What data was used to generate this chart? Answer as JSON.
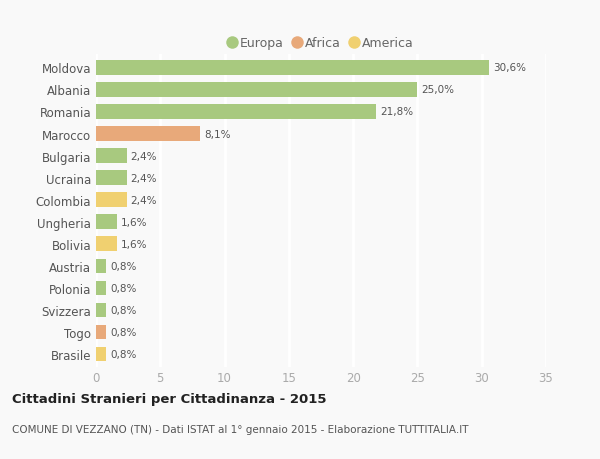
{
  "countries": [
    "Moldova",
    "Albania",
    "Romania",
    "Marocco",
    "Bulgaria",
    "Ucraina",
    "Colombia",
    "Ungheria",
    "Bolivia",
    "Austria",
    "Polonia",
    "Svizzera",
    "Togo",
    "Brasile"
  ],
  "values": [
    30.6,
    25.0,
    21.8,
    8.1,
    2.4,
    2.4,
    2.4,
    1.6,
    1.6,
    0.8,
    0.8,
    0.8,
    0.8,
    0.8
  ],
  "labels": [
    "30,6%",
    "25,0%",
    "21,8%",
    "8,1%",
    "2,4%",
    "2,4%",
    "2,4%",
    "1,6%",
    "1,6%",
    "0,8%",
    "0,8%",
    "0,8%",
    "0,8%",
    "0,8%"
  ],
  "categories": [
    "Europa",
    "Africa",
    "America"
  ],
  "colors": {
    "Europa": "#a8c97f",
    "Africa": "#e8a97a",
    "America": "#f0d070"
  },
  "bar_colors": [
    "Europa",
    "Europa",
    "Europa",
    "Africa",
    "Europa",
    "Europa",
    "America",
    "Europa",
    "America",
    "Europa",
    "Europa",
    "Europa",
    "Africa",
    "America"
  ],
  "title": "Cittadini Stranieri per Cittadinanza - 2015",
  "subtitle": "COMUNE DI VEZZANO (TN) - Dati ISTAT al 1° gennaio 2015 - Elaborazione TUTTITALIA.IT",
  "xlim": [
    0,
    35
  ],
  "xticks": [
    0,
    5,
    10,
    15,
    20,
    25,
    30,
    35
  ],
  "background_color": "#f9f9f9",
  "grid_color": "#ffffff"
}
